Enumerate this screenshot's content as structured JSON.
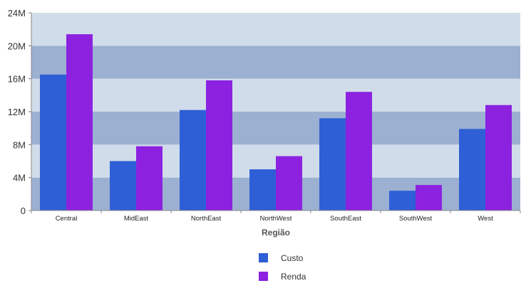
{
  "chart_data": {
    "type": "bar",
    "title": "",
    "xlabel": "Região",
    "ylabel": "",
    "categories": [
      "Central",
      "MidEast",
      "NorthEast",
      "NorthWest",
      "SouthEast",
      "SouthWest",
      "West"
    ],
    "series": [
      {
        "name": "Custo",
        "color": "#2e5fd6",
        "values": [
          16.5,
          6.0,
          12.2,
          5.0,
          11.2,
          2.4,
          9.9
        ]
      },
      {
        "name": "Renda",
        "color": "#8c22e0",
        "values": [
          21.4,
          7.8,
          15.8,
          6.6,
          14.4,
          3.1,
          12.8
        ]
      }
    ],
    "ylim": [
      0,
      24
    ],
    "yticks": [
      0,
      4,
      8,
      12,
      16,
      20,
      24
    ],
    "ytick_labels": [
      "0",
      "4M",
      "8M",
      "12M",
      "16M",
      "20M",
      "24M"
    ],
    "value_unit": "M",
    "grid": "alternating horizontal bands",
    "band_colors": [
      "#9cb0d1",
      "#d0dcea"
    ],
    "legend_position": "bottom-center"
  }
}
